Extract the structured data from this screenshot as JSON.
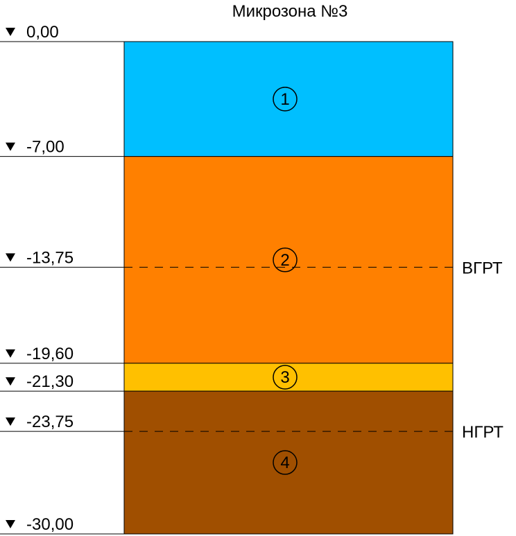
{
  "title": "Микрозона №3",
  "levels": [
    {
      "value": 0.0,
      "label": "0,00"
    },
    {
      "value": -7.0,
      "label": "-7,00"
    },
    {
      "value": -13.75,
      "label": "-13,75"
    },
    {
      "value": -19.6,
      "label": "-19,60"
    },
    {
      "value": -21.3,
      "label": "-21,30"
    },
    {
      "value": -23.75,
      "label": "-23,75"
    },
    {
      "value": -30.0,
      "label": "-30,00"
    }
  ],
  "layers": [
    {
      "number": "1",
      "top": 0.0,
      "bottom": -7.0,
      "color": "#00BFFF"
    },
    {
      "number": "2",
      "top": -7.0,
      "bottom": -19.6,
      "color": "#FF8000"
    },
    {
      "number": "3",
      "top": -19.6,
      "bottom": -21.3,
      "color": "#FFC000"
    },
    {
      "number": "4",
      "top": -21.3,
      "bottom": -30.0,
      "color": "#A04F00"
    }
  ],
  "water_levels": [
    {
      "label": "ВГРТ",
      "value": -13.75
    },
    {
      "label": "НГРТ",
      "value": -23.75
    }
  ],
  "level_marker": "▼"
}
